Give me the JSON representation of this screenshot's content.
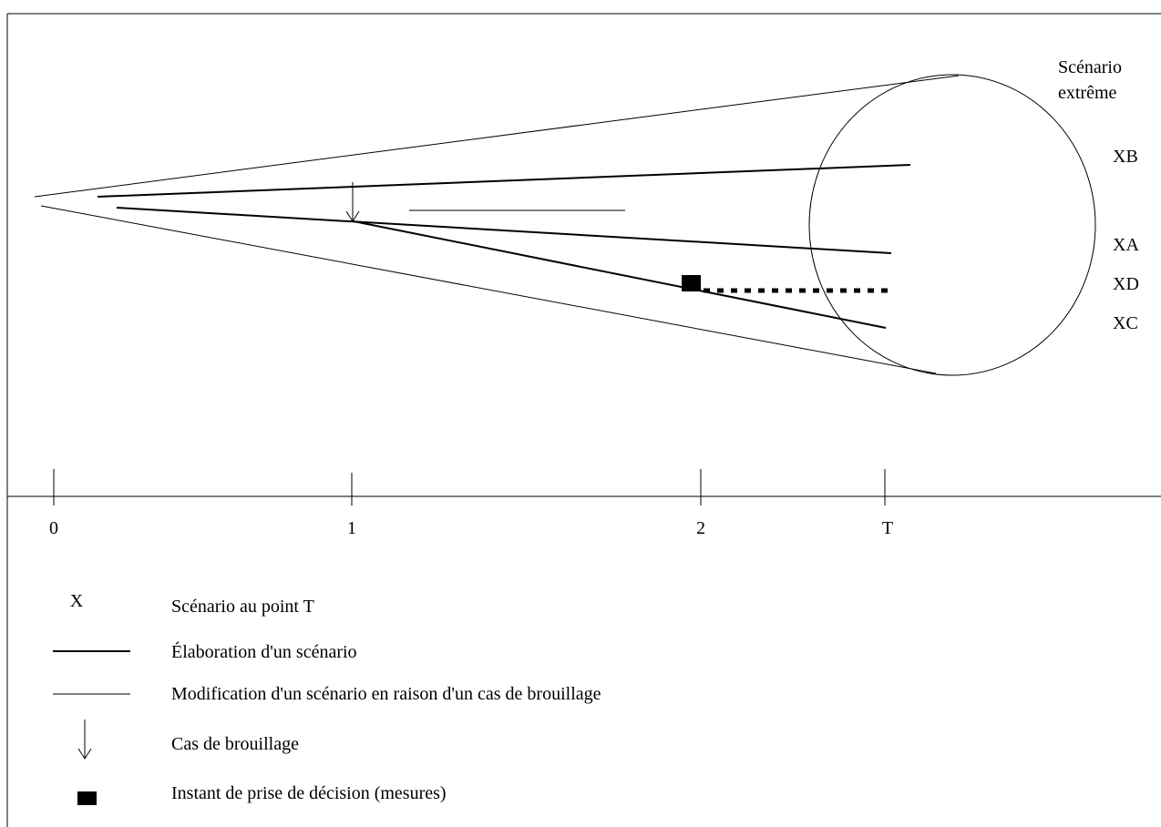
{
  "diagram": {
    "extreme_label_line1": "Scénario",
    "extreme_label_line2": "extrême",
    "scenario_labels": {
      "xb": "XB",
      "xa": "XA",
      "xd": "XD",
      "xc": "XC"
    },
    "axis_ticks": [
      "0",
      "1",
      "2",
      "T"
    ]
  },
  "legend": {
    "items": [
      {
        "symbol": "X",
        "label": "Scénario au point T"
      },
      {
        "label": "Élaboration d'un scénario"
      },
      {
        "label": "Modification d'un scénario en raison d'un cas de brouillage"
      },
      {
        "label": "Cas de brouillage"
      },
      {
        "label": "Instant de prise de décision (mesures)"
      }
    ]
  }
}
